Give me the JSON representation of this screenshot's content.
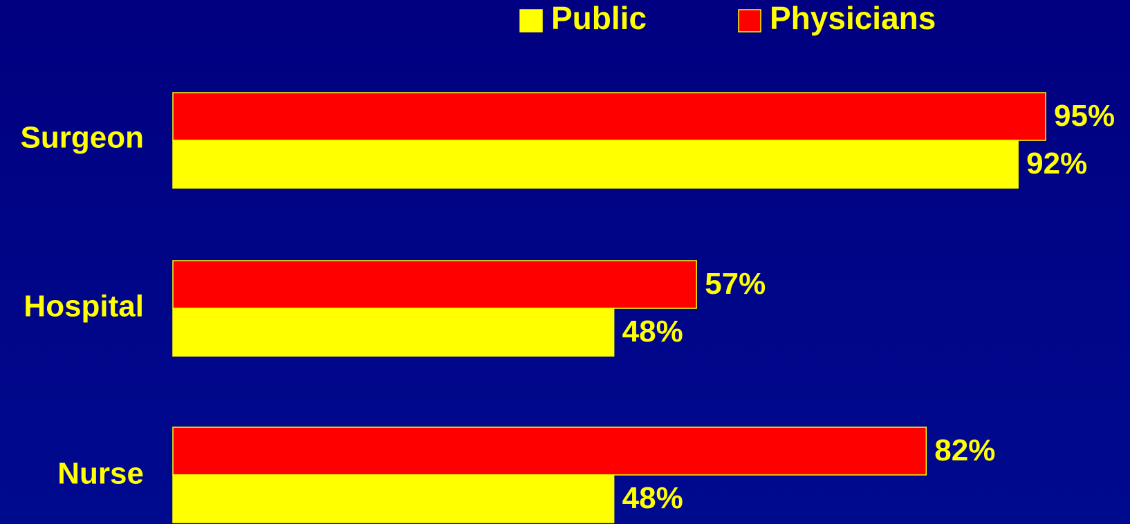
{
  "chart_data": {
    "type": "bar",
    "orientation": "horizontal",
    "title": "",
    "xlabel": "",
    "ylabel": "",
    "categories": [
      "Surgeon",
      "Hospital",
      "Nurse"
    ],
    "series": [
      {
        "name": "Public",
        "values": [
          92,
          48,
          48
        ],
        "labels": [
          "92%",
          "48%",
          "48%"
        ],
        "color": "#ffff00"
      },
      {
        "name": "Physicians",
        "values": [
          95,
          57,
          82
        ],
        "labels": [
          "95%",
          "57%",
          "82%"
        ],
        "color": "#ff0000"
      }
    ],
    "xlim": [
      0,
      100
    ],
    "grid": false,
    "legend_position": "top",
    "colors": {
      "background": "#000080",
      "text": "#ffff00",
      "bar_border": "#ffff00"
    }
  }
}
